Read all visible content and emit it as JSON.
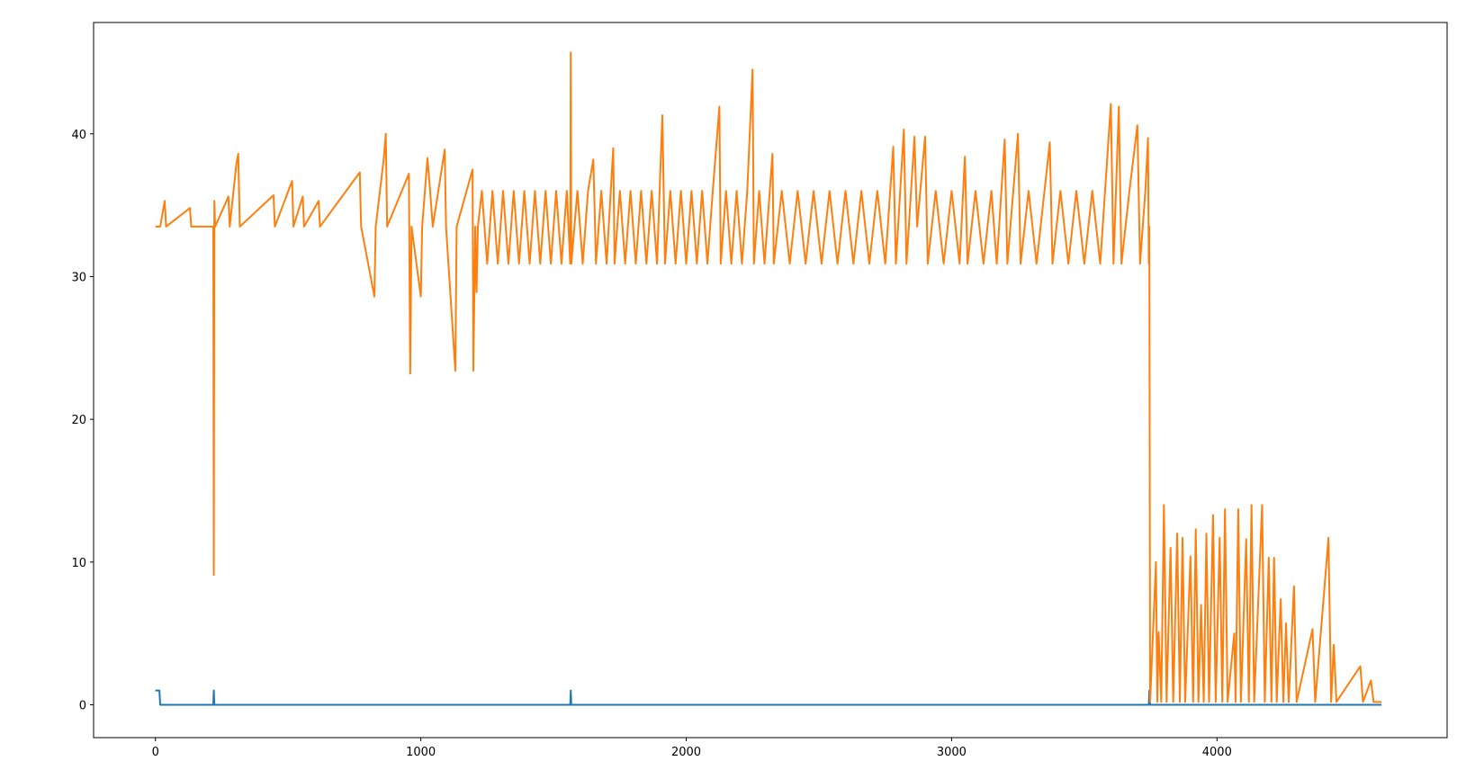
{
  "chart_data": {
    "type": "line",
    "xlim": [
      -233,
      4867
    ],
    "ylim": [
      -2.3,
      47.8
    ],
    "xticks": [
      0,
      1000,
      2000,
      3000,
      4000
    ],
    "yticks": [
      0,
      10,
      20,
      30,
      40
    ],
    "grid": false,
    "series": [
      {
        "color": "#1f77b4",
        "x": [
          0,
          15,
          18,
          218,
          220,
          222,
          1563,
          1565,
          1567,
          3743,
          3745,
          3748,
          4620
        ],
        "values": [
          1,
          1,
          0,
          0,
          1,
          0,
          0,
          1,
          0,
          0,
          1,
          0,
          0
        ]
      },
      {
        "color": "#ff7f0e",
        "x": [
          0,
          15,
          18,
          35,
          40,
          130,
          135,
          218,
          220,
          222,
          225,
          275,
          280,
          305,
          312,
          318,
          445,
          450,
          515,
          520,
          555,
          560,
          615,
          620,
          770,
          775,
          825,
          830,
          860,
          868,
          873,
          955,
          960,
          965,
          1000,
          1005,
          1025,
          1035,
          1045,
          1090,
          1095,
          1130,
          1135,
          1195,
          1198,
          1205,
          1210,
          1215,
          1230,
          1250,
          1270,
          1290,
          1310,
          1330,
          1350,
          1370,
          1390,
          1410,
          1430,
          1450,
          1470,
          1490,
          1510,
          1530,
          1550,
          1563,
          1565,
          1567,
          1590,
          1610,
          1630,
          1650,
          1660,
          1680,
          1700,
          1725,
          1730,
          1750,
          1770,
          1790,
          1810,
          1830,
          1850,
          1870,
          1890,
          1910,
          1920,
          1940,
          1960,
          1980,
          2000,
          2020,
          2040,
          2060,
          2080,
          2100,
          2125,
          2130,
          2150,
          2170,
          2190,
          2210,
          2230,
          2250,
          2255,
          2275,
          2295,
          2325,
          2330,
          2360,
          2390,
          2420,
          2450,
          2480,
          2510,
          2540,
          2570,
          2600,
          2630,
          2660,
          2690,
          2720,
          2750,
          2780,
          2790,
          2820,
          2830,
          2860,
          2870,
          2900,
          2910,
          2940,
          2970,
          3000,
          3030,
          3050,
          3060,
          3090,
          3120,
          3150,
          3170,
          3200,
          3210,
          3250,
          3260,
          3290,
          3320,
          3350,
          3370,
          3380,
          3410,
          3440,
          3470,
          3500,
          3530,
          3560,
          3600,
          3610,
          3630,
          3640,
          3670,
          3700,
          3710,
          3730,
          3740,
          3743,
          3745,
          3748,
          3770,
          3775,
          3780,
          3790,
          3800,
          3810,
          3825,
          3835,
          3850,
          3860,
          3870,
          3880,
          3900,
          3910,
          3920,
          3930,
          3940,
          3950,
          3960,
          3970,
          3985,
          3995,
          4010,
          4020,
          4030,
          4040,
          4065,
          4070,
          4080,
          4090,
          4110,
          4120,
          4130,
          4140,
          4170,
          4180,
          4195,
          4205,
          4215,
          4225,
          4240,
          4250,
          4260,
          4270,
          4290,
          4300,
          4360,
          4370,
          4420,
          4430,
          4440,
          4450,
          4540,
          4550,
          4580,
          4590,
          4620
        ],
        "values": [
          33.5,
          33.5,
          33.5,
          35.3,
          33.5,
          34.8,
          33.5,
          33.5,
          9.1,
          35.3,
          33.5,
          35.6,
          33.5,
          37.9,
          38.6,
          33.5,
          35.7,
          33.5,
          36.7,
          33.5,
          35.6,
          33.5,
          35.3,
          33.5,
          37.3,
          33.5,
          28.6,
          33.5,
          38.2,
          40.0,
          33.5,
          37.2,
          23.2,
          33.5,
          28.6,
          33.5,
          38.3,
          36.0,
          33.5,
          38.9,
          33.5,
          23.4,
          33.5,
          37.5,
          23.4,
          33.5,
          28.9,
          33.5,
          36.0,
          30.9,
          36.0,
          30.9,
          36.0,
          30.9,
          36.0,
          30.9,
          36.0,
          30.9,
          36.0,
          30.9,
          36.0,
          30.9,
          36.0,
          30.9,
          36.0,
          30.9,
          45.7,
          30.9,
          36.0,
          30.9,
          36.0,
          38.2,
          30.9,
          36.0,
          30.9,
          39.0,
          30.9,
          36.0,
          30.9,
          36.0,
          30.9,
          36.0,
          30.9,
          36.0,
          30.9,
          41.3,
          30.9,
          36.0,
          30.9,
          36.0,
          30.9,
          36.0,
          30.9,
          36.0,
          30.9,
          36.0,
          41.9,
          30.9,
          36.0,
          30.9,
          36.0,
          30.9,
          36.0,
          44.5,
          30.9,
          36.0,
          30.9,
          38.6,
          30.9,
          36.0,
          30.9,
          36.0,
          30.9,
          36.0,
          30.9,
          36.0,
          30.9,
          36.0,
          30.9,
          36.0,
          30.9,
          36.0,
          30.9,
          39.1,
          30.9,
          40.3,
          30.9,
          39.8,
          33.5,
          39.8,
          30.9,
          36.0,
          30.9,
          36.0,
          30.9,
          38.4,
          30.9,
          36.0,
          30.9,
          36.0,
          30.9,
          39.6,
          30.9,
          40.0,
          30.9,
          36.0,
          30.9,
          36.0,
          39.4,
          30.9,
          36.0,
          30.9,
          36.0,
          30.9,
          36.0,
          30.9,
          42.1,
          30.9,
          41.9,
          30.9,
          36.0,
          40.6,
          30.9,
          36.0,
          39.7,
          30.9,
          33.5,
          0.2,
          10.0,
          0.2,
          5.1,
          0.2,
          14.0,
          0.2,
          11.0,
          0.2,
          12.0,
          0.2,
          11.7,
          0.2,
          10.4,
          0.2,
          12.3,
          0.2,
          7.0,
          0.2,
          12.0,
          0.2,
          13.3,
          0.2,
          11.7,
          0.2,
          13.7,
          0.2,
          5.0,
          0.2,
          13.7,
          0.2,
          11.6,
          0.2,
          14.0,
          0.2,
          14.0,
          0.2,
          10.3,
          0.2,
          10.3,
          0.2,
          7.4,
          0.2,
          5.7,
          0.2,
          8.3,
          0.2,
          5.3,
          0.2,
          11.7,
          0.2,
          4.2,
          0.2,
          2.7,
          0.2,
          1.7,
          0.2,
          0.2
        ]
      }
    ]
  }
}
